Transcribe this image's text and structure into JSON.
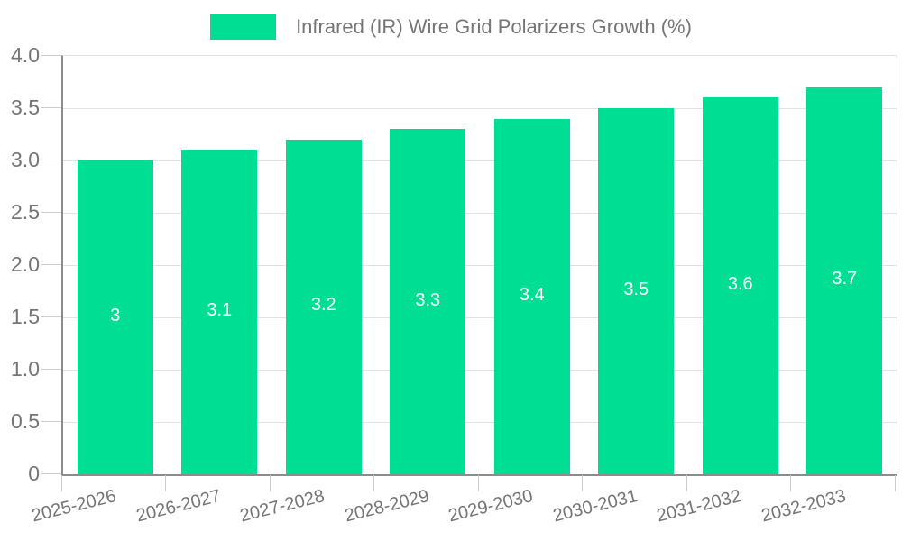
{
  "legend": {
    "label": "Infrared (IR) Wire Grid Polarizers Growth (%)"
  },
  "colors": {
    "bar": "#00de94",
    "axis_text": "#757575",
    "grid_line": "#e3e3e3",
    "axis_line": "#8c8c8c",
    "tick": "#cccccc",
    "value_label": "#ffffff",
    "background": "#ffffff"
  },
  "chart_data": {
    "type": "bar",
    "title": "Infrared (IR) Wire Grid Polarizers Growth (%)",
    "categories": [
      "2025-2026",
      "2026-2027",
      "2027-2028",
      "2028-2029",
      "2029-2030",
      "2030-2031",
      "2031-2032",
      "2032-2033"
    ],
    "series": [
      {
        "name": "Infrared (IR) Wire Grid Polarizers Growth (%)",
        "values": [
          3,
          3.1,
          3.2,
          3.3,
          3.4,
          3.5,
          3.6,
          3.7
        ],
        "value_labels": [
          "3",
          "3.1",
          "3.2",
          "3.3",
          "3.4",
          "3.5",
          "3.6",
          "3.7"
        ]
      }
    ],
    "xlabel": "",
    "ylabel": "",
    "ylim": [
      0,
      4
    ],
    "yticks": [
      {
        "value": 0,
        "label": "0"
      },
      {
        "value": 0.5,
        "label": "0.5"
      },
      {
        "value": 1,
        "label": "1.0"
      },
      {
        "value": 1.5,
        "label": "1.5"
      },
      {
        "value": 2,
        "label": "2.0"
      },
      {
        "value": 2.5,
        "label": "2.5"
      },
      {
        "value": 3,
        "label": "3.0"
      },
      {
        "value": 3.5,
        "label": "3.5"
      },
      {
        "value": 4,
        "label": "4.0"
      }
    ],
    "grid": true,
    "legend_position": "top-center",
    "bar_label_position": "center"
  }
}
